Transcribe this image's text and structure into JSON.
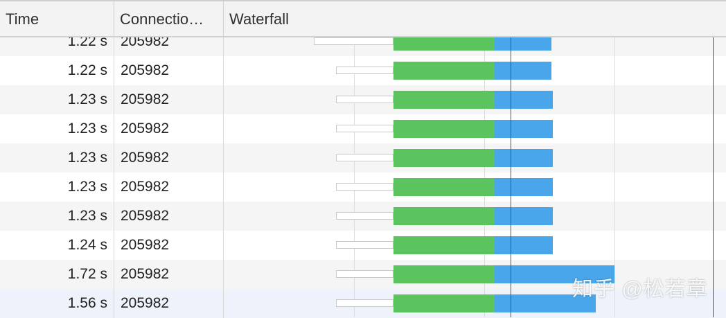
{
  "header": {
    "columns": [
      "Time",
      "Connectio…",
      "Waterfall"
    ]
  },
  "rows": [
    {
      "time": "1.22 s",
      "connection": "205982"
    },
    {
      "time": "1.22 s",
      "connection": "205982"
    },
    {
      "time": "1.23 s",
      "connection": "205982"
    },
    {
      "time": "1.23 s",
      "connection": "205982"
    },
    {
      "time": "1.23 s",
      "connection": "205982"
    },
    {
      "time": "1.23 s",
      "connection": "205982"
    },
    {
      "time": "1.23 s",
      "connection": "205982"
    },
    {
      "time": "1.24 s",
      "connection": "205982"
    },
    {
      "time": "1.72 s",
      "connection": "205982"
    },
    {
      "time": "1.56 s",
      "connection": "205982"
    }
  ],
  "colors": {
    "waiting": "#5bc45f",
    "download": "#4aa6ea",
    "dom_content_loaded": "#1a5fa8",
    "load": "#9b2a2a"
  },
  "watermark": "知乎 @松若章"
}
